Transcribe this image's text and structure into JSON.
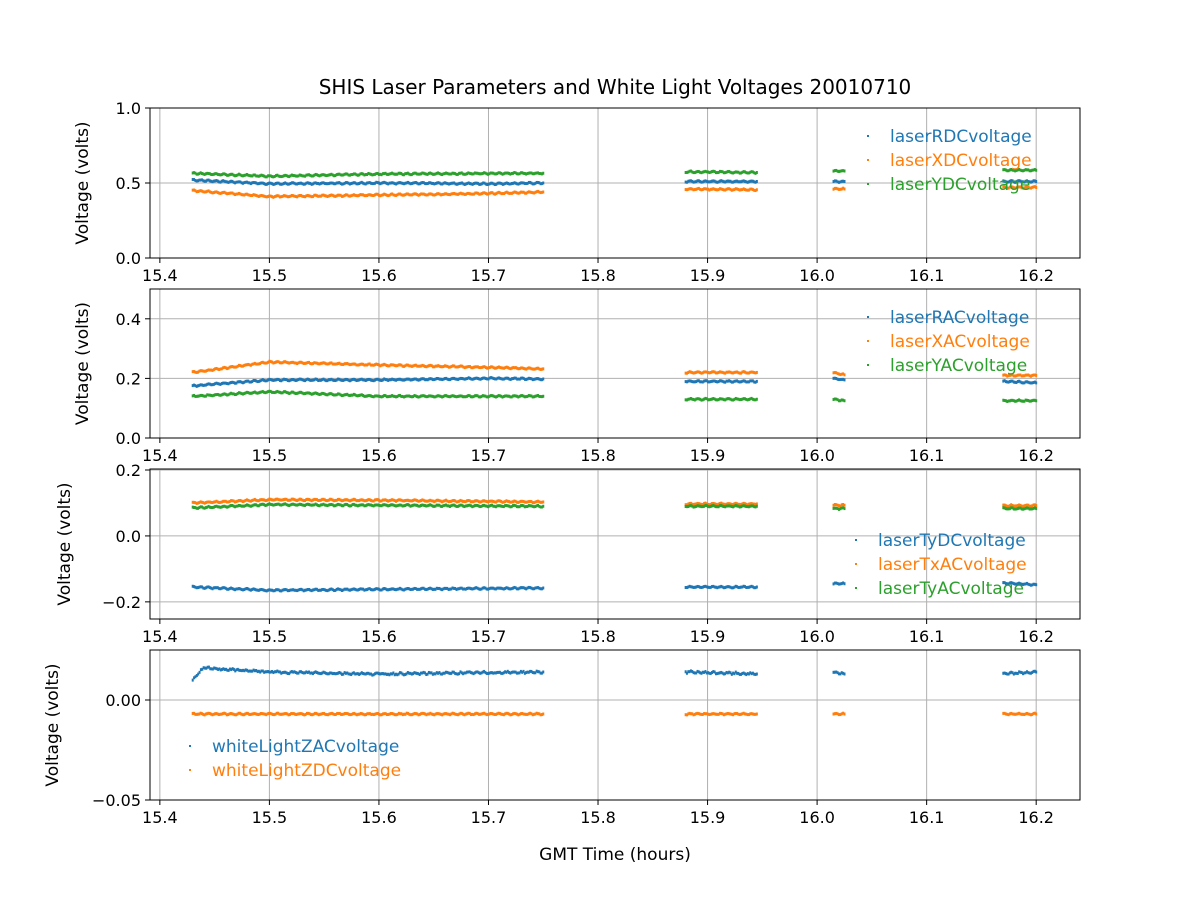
{
  "chart_data": {
    "type": "scatter",
    "title": "SHIS Laser Parameters and White Light Voltages 20010710",
    "xlabel": "GMT Time (hours)",
    "xlim": [
      15.391,
      16.24
    ],
    "xticks": [
      15.4,
      15.5,
      15.6,
      15.7,
      15.8,
      15.9,
      16.0,
      16.1,
      16.2
    ],
    "xtick_labels": [
      "15.4",
      "15.5",
      "15.6",
      "15.7",
      "15.8",
      "15.9",
      "16.0",
      "16.1",
      "16.2"
    ],
    "grid": true,
    "colors": {
      "blue": "#1f77b4",
      "orange": "#ff7f0e",
      "green": "#2ca02c"
    },
    "panels": [
      {
        "ylabel": "Voltage (volts)",
        "ylim": [
          0,
          1.0
        ],
        "yticks": [
          0,
          0.5,
          1.0
        ],
        "ytick_labels": [
          "0.0",
          "0.5",
          "1.0"
        ],
        "legend_position": "top-right",
        "series": [
          {
            "name": "laserRDCvoltage",
            "color": "#1f77b4",
            "segments": [
              [
                [
                  15.43,
                  0.52
                ],
                [
                  15.5,
                  0.495
                ],
                [
                  15.6,
                  0.5
                ],
                [
                  15.7,
                  0.495
                ],
                [
                  15.75,
                  0.5
                ]
              ],
              [
                [
                  15.88,
                  0.51
                ],
                [
                  15.945,
                  0.51
                ]
              ],
              [
                [
                  16.015,
                  0.51
                ],
                [
                  16.025,
                  0.51
                ]
              ],
              [
                [
                  16.17,
                  0.51
                ],
                [
                  16.2,
                  0.51
                ]
              ]
            ]
          },
          {
            "name": "laserXDCvoltage",
            "color": "#ff7f0e",
            "segments": [
              [
                [
                  15.43,
                  0.45
                ],
                [
                  15.5,
                  0.41
                ],
                [
                  15.6,
                  0.42
                ],
                [
                  15.7,
                  0.43
                ],
                [
                  15.75,
                  0.44
                ]
              ],
              [
                [
                  15.88,
                  0.46
                ],
                [
                  15.945,
                  0.455
                ]
              ],
              [
                [
                  16.015,
                  0.46
                ],
                [
                  16.025,
                  0.46
                ]
              ],
              [
                [
                  16.17,
                  0.47
                ],
                [
                  16.2,
                  0.47
                ]
              ]
            ]
          },
          {
            "name": "laserYDCvoltage",
            "color": "#2ca02c",
            "segments": [
              [
                [
                  15.43,
                  0.565
                ],
                [
                  15.5,
                  0.545
                ],
                [
                  15.6,
                  0.56
                ],
                [
                  15.75,
                  0.565
                ]
              ],
              [
                [
                  15.88,
                  0.575
                ],
                [
                  15.945,
                  0.57
                ]
              ],
              [
                [
                  16.015,
                  0.58
                ],
                [
                  16.025,
                  0.58
                ]
              ],
              [
                [
                  16.17,
                  0.585
                ],
                [
                  16.2,
                  0.585
                ]
              ]
            ]
          }
        ]
      },
      {
        "ylabel": "Voltage (volts)",
        "ylim": [
          0,
          0.5
        ],
        "yticks": [
          0,
          0.2,
          0.4
        ],
        "ytick_labels": [
          "0.0",
          "0.2",
          "0.4"
        ],
        "legend_position": "top-right",
        "series": [
          {
            "name": "laserRACvoltage",
            "color": "#1f77b4",
            "segments": [
              [
                [
                  15.43,
                  0.175
                ],
                [
                  15.5,
                  0.195
                ],
                [
                  15.6,
                  0.195
                ],
                [
                  15.7,
                  0.2
                ],
                [
                  15.75,
                  0.198
                ]
              ],
              [
                [
                  15.88,
                  0.19
                ],
                [
                  15.945,
                  0.19
                ]
              ],
              [
                [
                  16.015,
                  0.2
                ],
                [
                  16.025,
                  0.195
                ]
              ],
              [
                [
                  16.17,
                  0.19
                ],
                [
                  16.2,
                  0.185
                ]
              ]
            ]
          },
          {
            "name": "laserXACvoltage",
            "color": "#ff7f0e",
            "segments": [
              [
                [
                  15.43,
                  0.22
                ],
                [
                  15.5,
                  0.255
                ],
                [
                  15.6,
                  0.245
                ],
                [
                  15.7,
                  0.237
                ],
                [
                  15.75,
                  0.232
                ]
              ],
              [
                [
                  15.88,
                  0.22
                ],
                [
                  15.945,
                  0.22
                ]
              ],
              [
                [
                  16.015,
                  0.22
                ],
                [
                  16.025,
                  0.212
                ]
              ],
              [
                [
                  16.17,
                  0.21
                ],
                [
                  16.2,
                  0.21
                ]
              ]
            ]
          },
          {
            "name": "laserYACvoltage",
            "color": "#2ca02c",
            "segments": [
              [
                [
                  15.43,
                  0.14
                ],
                [
                  15.5,
                  0.155
                ],
                [
                  15.6,
                  0.14
                ],
                [
                  15.75,
                  0.14
                ]
              ],
              [
                [
                  15.88,
                  0.13
                ],
                [
                  15.945,
                  0.13
                ]
              ],
              [
                [
                  16.015,
                  0.13
                ],
                [
                  16.025,
                  0.125
                ]
              ],
              [
                [
                  16.17,
                  0.125
                ],
                [
                  16.2,
                  0.125
                ]
              ]
            ]
          }
        ]
      },
      {
        "ylabel": "Voltage (volts)",
        "ylim": [
          -0.252,
          0.203
        ],
        "yticks": [
          -0.2,
          0.0,
          0.2
        ],
        "ytick_labels": [
          "−0.2",
          "0.0",
          "0.2"
        ],
        "legend_position": "lower-right",
        "series": [
          {
            "name": "laserTyDCvoltage",
            "color": "#1f77b4",
            "segments": [
              [
                [
                  15.43,
                  -0.155
                ],
                [
                  15.5,
                  -0.165
                ],
                [
                  15.6,
                  -0.162
                ],
                [
                  15.75,
                  -0.158
                ]
              ],
              [
                [
                  15.88,
                  -0.155
                ],
                [
                  15.945,
                  -0.155
                ]
              ],
              [
                [
                  16.015,
                  -0.145
                ],
                [
                  16.025,
                  -0.145
                ]
              ],
              [
                [
                  16.17,
                  -0.143
                ],
                [
                  16.2,
                  -0.148
                ]
              ]
            ]
          },
          {
            "name": "laserTxACvoltage",
            "color": "#ff7f0e",
            "segments": [
              [
                [
                  15.43,
                  0.1
                ],
                [
                  15.5,
                  0.11
                ],
                [
                  15.6,
                  0.108
                ],
                [
                  15.75,
                  0.103
                ]
              ],
              [
                [
                  15.88,
                  0.097
                ],
                [
                  15.945,
                  0.097
                ]
              ],
              [
                [
                  16.015,
                  0.093
                ],
                [
                  16.025,
                  0.093
                ]
              ],
              [
                [
                  16.17,
                  0.092
                ],
                [
                  16.2,
                  0.092
                ]
              ]
            ]
          },
          {
            "name": "laserTyACvoltage",
            "color": "#2ca02c",
            "segments": [
              [
                [
                  15.43,
                  0.085
                ],
                [
                  15.5,
                  0.095
                ],
                [
                  15.6,
                  0.093
                ],
                [
                  15.75,
                  0.09
                ]
              ],
              [
                [
                  15.88,
                  0.09
                ],
                [
                  15.945,
                  0.09
                ]
              ],
              [
                [
                  16.015,
                  0.083
                ],
                [
                  16.025,
                  0.083
                ]
              ],
              [
                [
                  16.17,
                  0.083
                ],
                [
                  16.2,
                  0.083
                ]
              ]
            ]
          }
        ]
      },
      {
        "ylabel": "Voltage (volts)",
        "ylim": [
          -0.05,
          0.025
        ],
        "yticks": [
          -0.05,
          0.0
        ],
        "ytick_labels": [
          "−0.05",
          "0.00"
        ],
        "legend_position": "lower-left",
        "series": [
          {
            "name": "whiteLightZACvoltage",
            "color": "#1f77b4",
            "segments": [
              [
                [
                  15.43,
                  0.01
                ],
                [
                  15.44,
                  0.016
                ],
                [
                  15.5,
                  0.014
                ],
                [
                  15.6,
                  0.013
                ],
                [
                  15.75,
                  0.014
                ]
              ],
              [
                [
                  15.88,
                  0.014
                ],
                [
                  15.945,
                  0.013
                ]
              ],
              [
                [
                  16.015,
                  0.014
                ],
                [
                  16.025,
                  0.013
                ]
              ],
              [
                [
                  16.17,
                  0.013
                ],
                [
                  16.2,
                  0.014
                ]
              ]
            ]
          },
          {
            "name": "whiteLightZDCvoltage",
            "color": "#ff7f0e",
            "segments": [
              [
                [
                  15.43,
                  -0.007
                ],
                [
                  15.75,
                  -0.007
                ]
              ],
              [
                [
                  15.88,
                  -0.007
                ],
                [
                  15.945,
                  -0.007
                ]
              ],
              [
                [
                  16.015,
                  -0.007
                ],
                [
                  16.025,
                  -0.007
                ]
              ],
              [
                [
                  16.17,
                  -0.007
                ],
                [
                  16.2,
                  -0.007
                ]
              ]
            ]
          }
        ]
      }
    ]
  }
}
